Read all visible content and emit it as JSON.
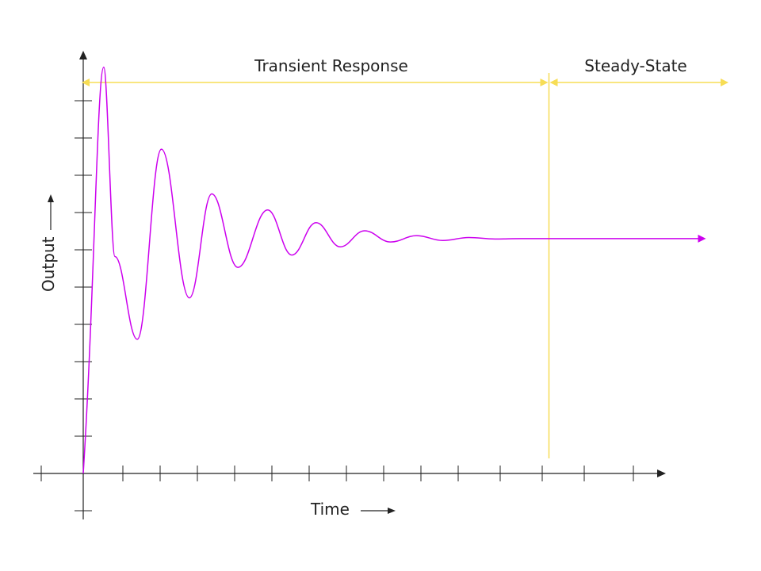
{
  "chart_data": {
    "type": "line",
    "title": "",
    "xlabel": "Time",
    "ylabel": "Output",
    "x_ticks": 16,
    "y_ticks": 11,
    "regions": [
      {
        "label": "Transient Response",
        "x_start": 0,
        "x_end": 12.5
      },
      {
        "label": "Steady-State",
        "x_start": 12.5,
        "x_end": 17.5
      }
    ],
    "series": [
      {
        "x": [
          0,
          0.55,
          0.85,
          1.45,
          2.1,
          2.85,
          3.45,
          4.15,
          4.95,
          5.6,
          6.25,
          6.9,
          7.55,
          8.25,
          8.95,
          9.65,
          10.35,
          11.05,
          11.75,
          12.5,
          16.5
        ],
        "y": [
          0,
          10.9,
          5.82,
          3.6,
          8.7,
          4.71,
          7.5,
          5.53,
          7.07,
          5.86,
          6.73,
          6.08,
          6.51,
          6.21,
          6.38,
          6.25,
          6.33,
          6.29,
          6.3,
          6.3,
          6.3
        ]
      }
    ],
    "colors": {
      "series": "#cc00ee",
      "regions": "#f7dd55",
      "axes": "#222222"
    }
  }
}
